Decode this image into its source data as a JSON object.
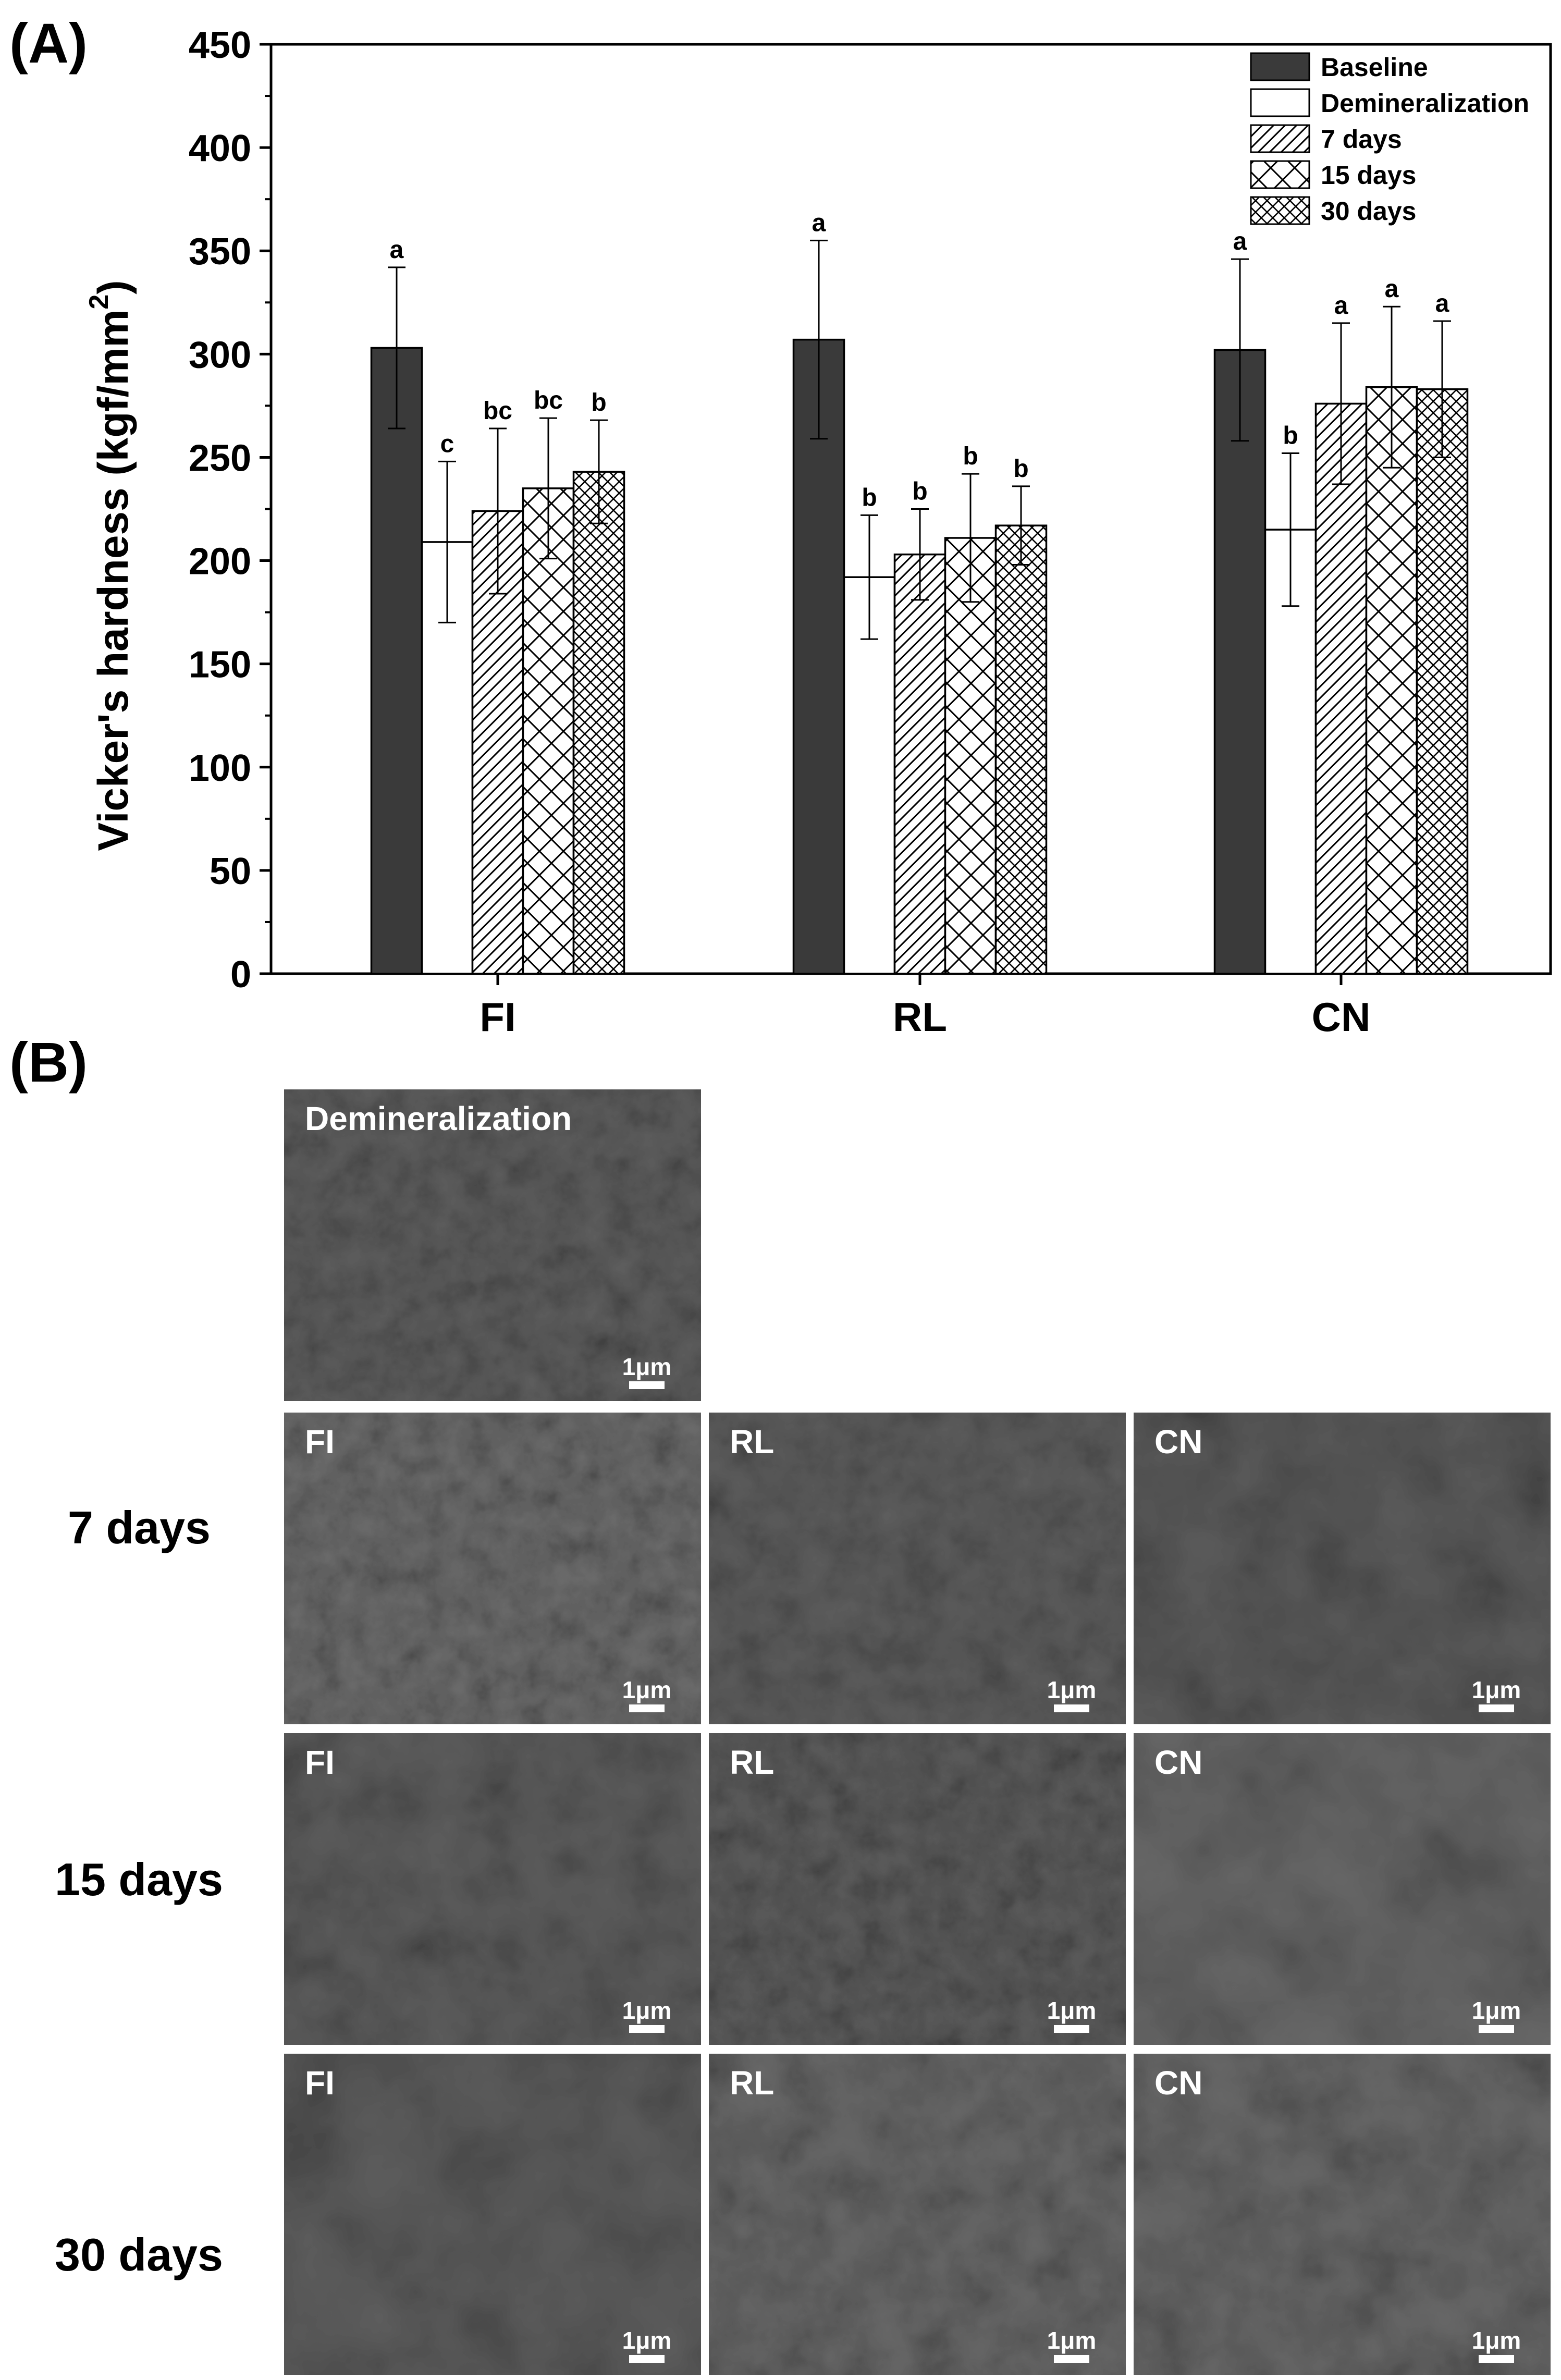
{
  "panel_a_label": "(A)",
  "panel_b_label": "(B)",
  "chart_data": {
    "type": "bar",
    "title": "",
    "ylabel": "Vicker's hardness (kgf/mm",
    "ylabel_superscript": "2",
    "ylabel_close": ")",
    "xlabel": "",
    "ylim": [
      0,
      450
    ],
    "yticks": [
      0,
      50,
      100,
      150,
      200,
      250,
      300,
      350,
      400,
      450
    ],
    "categories": [
      "FI",
      "RL",
      "CN"
    ],
    "legend_position": "top-right",
    "series": [
      {
        "name": "Baseline",
        "pattern": "solid-dark",
        "values": [
          303,
          307,
          302
        ],
        "errors": [
          39,
          48,
          44
        ],
        "letters": [
          "a",
          "a",
          "a"
        ]
      },
      {
        "name": "Demineralization",
        "pattern": "white",
        "values": [
          209,
          192,
          215
        ],
        "errors": [
          39,
          30,
          37
        ],
        "letters": [
          "c",
          "b",
          "b"
        ]
      },
      {
        "name": "7 days",
        "pattern": "diagonal",
        "values": [
          224,
          203,
          276
        ],
        "errors": [
          40,
          22,
          39
        ],
        "letters": [
          "bc",
          "b",
          "a"
        ]
      },
      {
        "name": "15 days",
        "pattern": "diag-cross",
        "values": [
          235,
          211,
          284
        ],
        "errors": [
          34,
          31,
          39
        ],
        "letters": [
          "bc",
          "b",
          "a"
        ]
      },
      {
        "name": "30 days",
        "pattern": "fine-cross",
        "values": [
          243,
          217,
          283
        ],
        "errors": [
          25,
          19,
          33
        ],
        "letters": [
          "b",
          "b",
          "a"
        ]
      }
    ]
  },
  "sem": {
    "scale_bar_text": "1μm",
    "demineralization_label": "Demineralization",
    "rows": [
      {
        "label": "7 days",
        "cells": [
          "FI",
          "RL",
          "CN"
        ]
      },
      {
        "label": "15 days",
        "cells": [
          "FI",
          "RL",
          "CN"
        ]
      },
      {
        "label": "30 days",
        "cells": [
          "FI",
          "RL",
          "CN"
        ]
      }
    ]
  },
  "colors": {
    "baseline_fill": "#3a3a3a",
    "axis": "#000000",
    "sem_base": "#6e6e6e"
  }
}
